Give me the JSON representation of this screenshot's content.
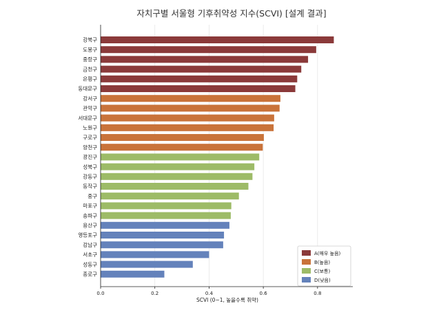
{
  "chart_data": {
    "type": "bar",
    "orientation": "horizontal",
    "title": "자치구별 서울형 기후취약성 지수(SCVI) [설계 결과]",
    "xlabel": "SCVI (0~1, 높을수록 취약)",
    "ylabel": "",
    "xlim": [
      0,
      0.93
    ],
    "xticks": [
      "0.0",
      "0.2",
      "0.4",
      "0.6",
      "0.8"
    ],
    "grid": "vertical",
    "legend_position": "bottom-right",
    "classes": [
      {
        "key": "A",
        "label": "A(매우 높음)",
        "color": "#8b3a3a"
      },
      {
        "key": "B",
        "label": "B(높음)",
        "color": "#c9733a"
      },
      {
        "key": "C",
        "label": "C(보통)",
        "color": "#9dbb67"
      },
      {
        "key": "D",
        "label": "D(낮음)",
        "color": "#6482bb"
      }
    ],
    "categories": [
      "강북구",
      "도봉구",
      "중랑구",
      "금천구",
      "은평구",
      "동대문구",
      "강서구",
      "관악구",
      "서대문구",
      "노원구",
      "구로구",
      "양천구",
      "광진구",
      "성북구",
      "강동구",
      "동작구",
      "중구",
      "마포구",
      "송파구",
      "용산구",
      "영등포구",
      "강남구",
      "서초구",
      "성동구",
      "종로구"
    ],
    "values": [
      0.86,
      0.795,
      0.765,
      0.74,
      0.725,
      0.718,
      0.663,
      0.66,
      0.64,
      0.638,
      0.602,
      0.598,
      0.585,
      0.567,
      0.56,
      0.545,
      0.51,
      0.482,
      0.48,
      0.475,
      0.455,
      0.452,
      0.4,
      0.34,
      0.235
    ],
    "value_class": [
      "A",
      "A",
      "A",
      "A",
      "A",
      "A",
      "B",
      "B",
      "B",
      "B",
      "B",
      "B",
      "C",
      "C",
      "C",
      "C",
      "C",
      "C",
      "C",
      "D",
      "D",
      "D",
      "D",
      "D",
      "D"
    ]
  }
}
